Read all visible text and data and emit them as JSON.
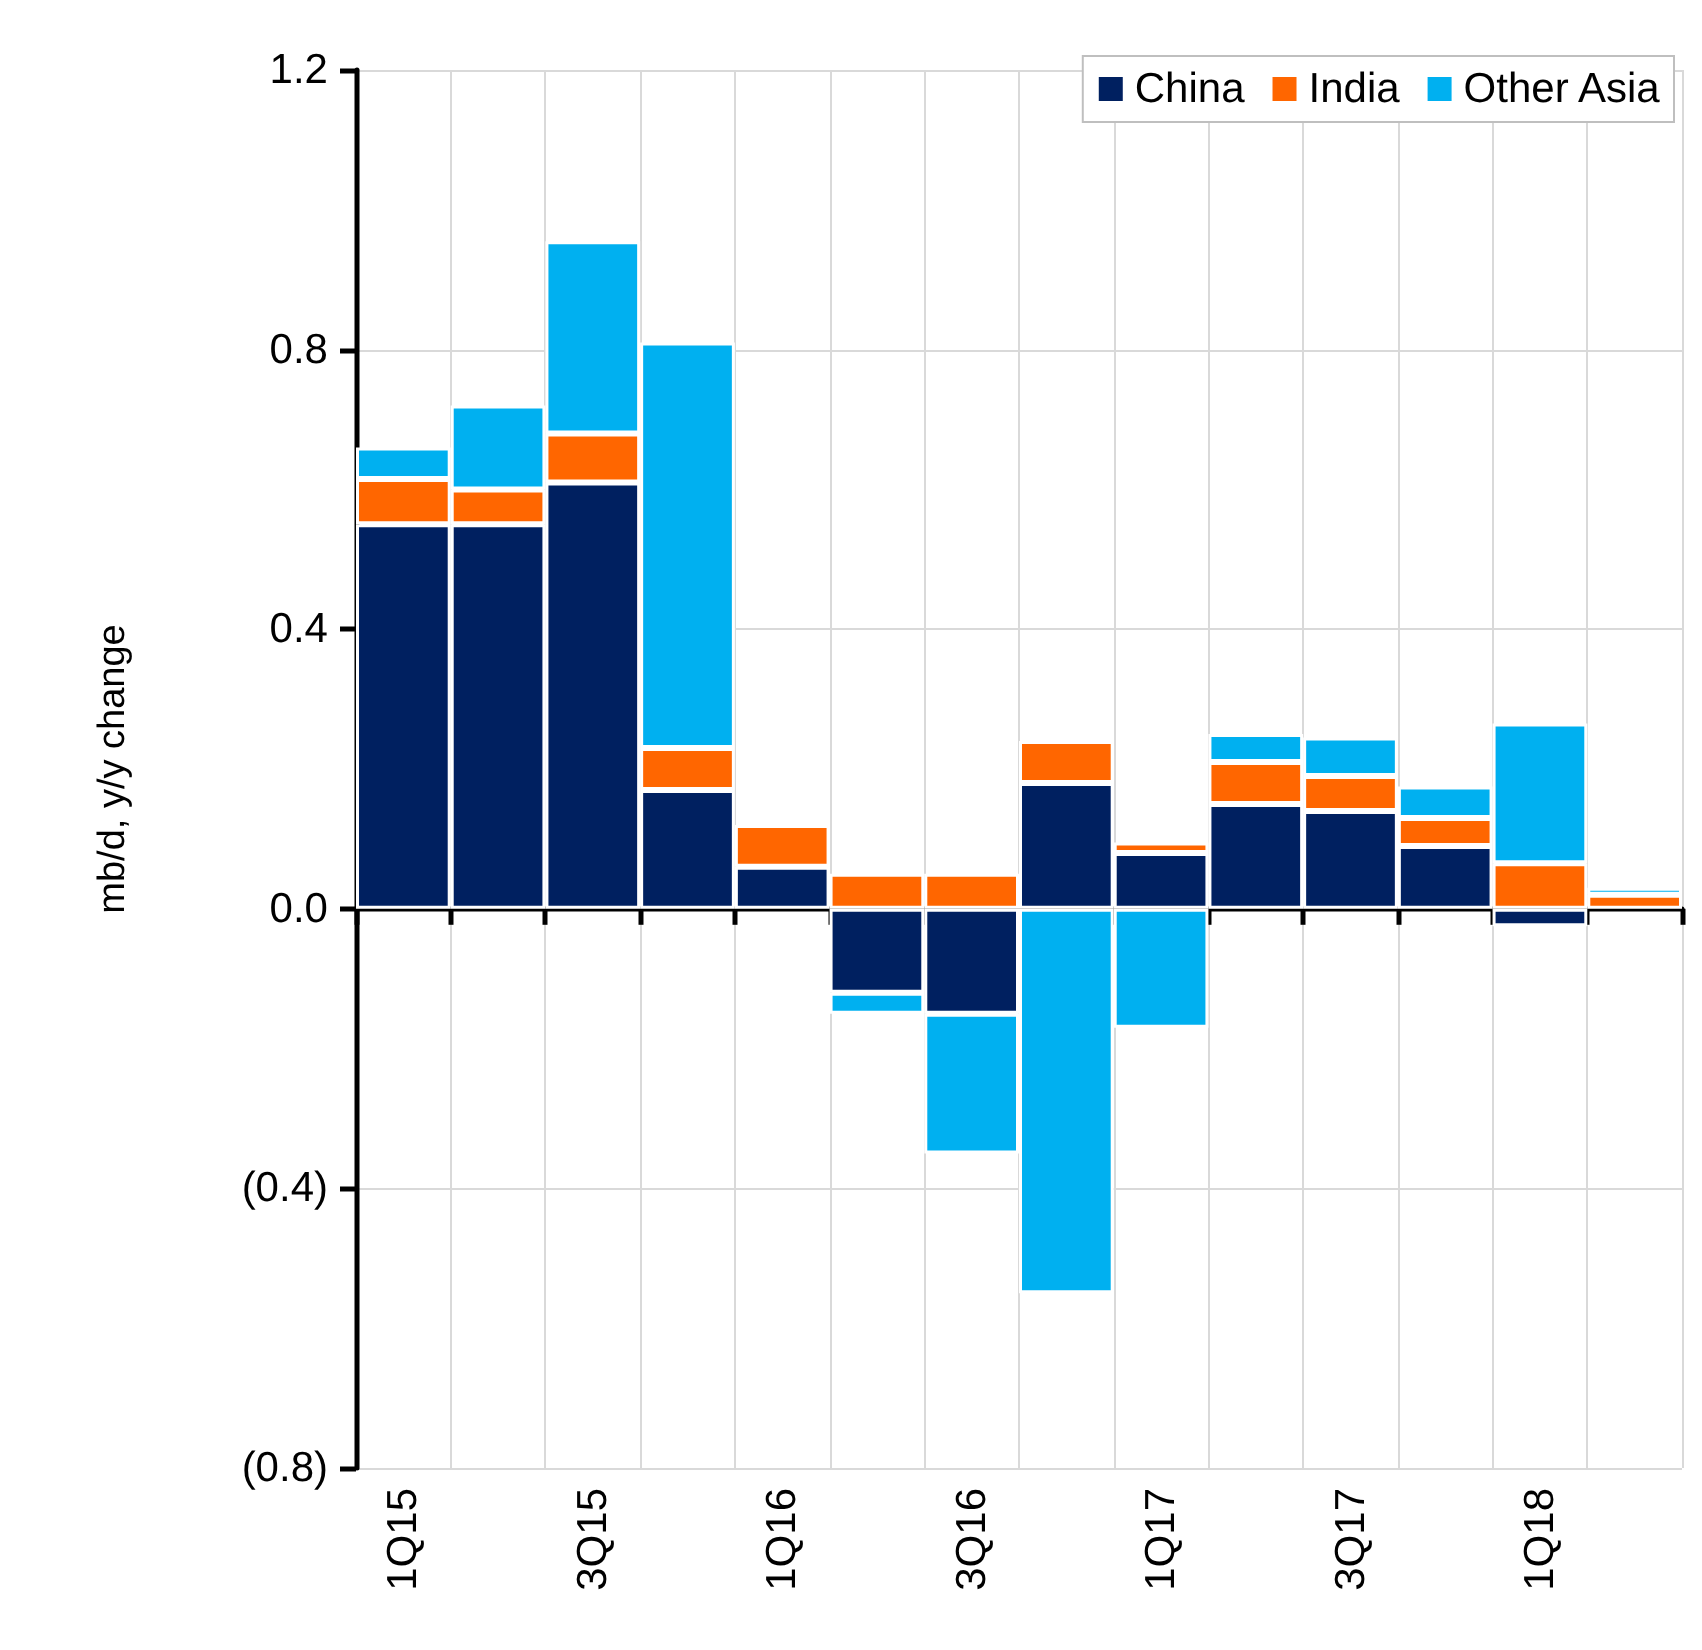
{
  "chart_data": {
    "type": "bar",
    "stacked": true,
    "ylabel": "mb/d, y/y change",
    "categories": [
      "1Q15",
      null,
      "3Q15",
      null,
      "1Q16",
      null,
      "3Q16",
      null,
      "1Q17",
      null,
      "3Q17",
      null,
      "1Q18",
      null
    ],
    "series": [
      {
        "name": "China",
        "color": "#002060",
        "values": [
          0.55,
          0.55,
          0.61,
          0.17,
          0.06,
          -0.12,
          -0.15,
          0.18,
          0.08,
          0.15,
          0.14,
          0.09,
          -0.025,
          null
        ]
      },
      {
        "name": "India",
        "color": "#ff6600",
        "values": [
          0.065,
          0.05,
          0.07,
          0.06,
          0.06,
          0.05,
          0.05,
          0.06,
          0.015,
          0.06,
          0.05,
          0.04,
          0.065,
          0.02
        ]
      },
      {
        "name": "Other Asia",
        "color": "#00b0f0",
        "values": [
          0.045,
          0.12,
          0.275,
          0.58,
          null,
          -0.03,
          -0.2,
          -0.55,
          -0.17,
          0.04,
          0.055,
          0.045,
          0.2,
          0.01
        ]
      }
    ],
    "ylim": [
      -0.8,
      1.2
    ],
    "yticks": [
      {
        "value": -0.8,
        "label": "(0.8)"
      },
      {
        "value": -0.4,
        "label": "(0.4)"
      },
      {
        "value": 0,
        "label": "0.0"
      },
      0.4,
      0.8,
      1.2
    ],
    "grid": true,
    "legend": "top right"
  }
}
